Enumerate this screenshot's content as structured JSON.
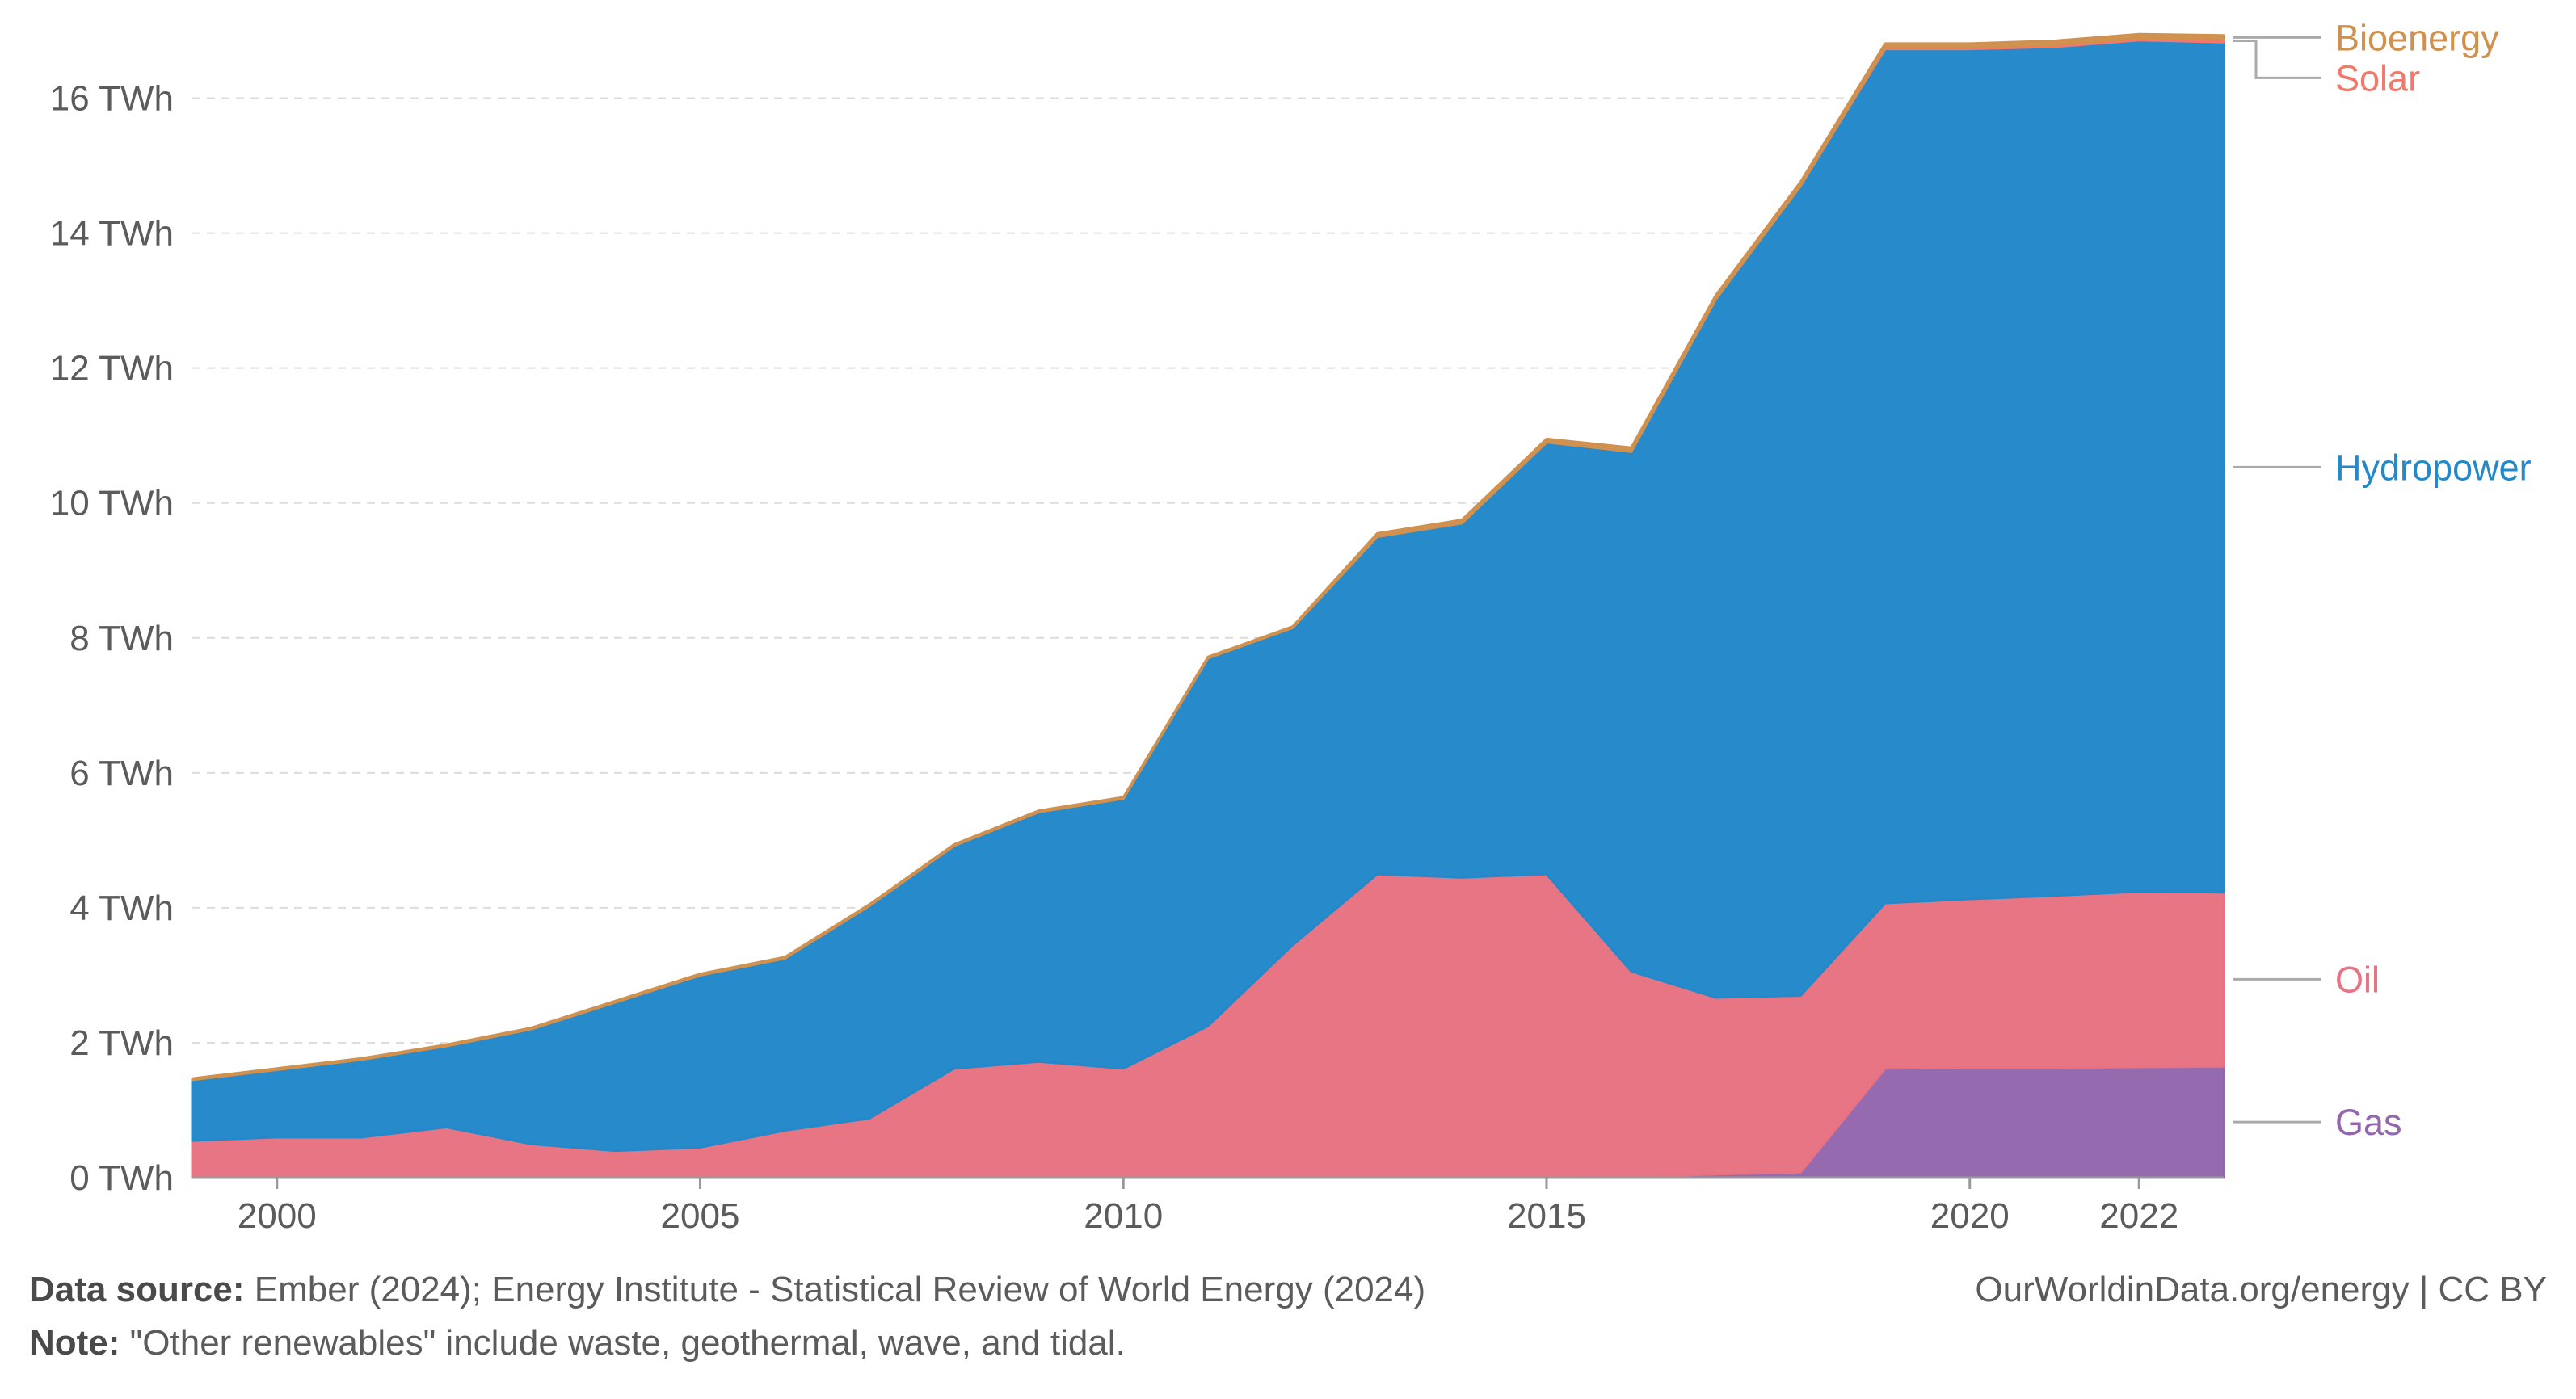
{
  "chart_data": {
    "type": "area",
    "stacked": true,
    "x": [
      1999,
      2000,
      2001,
      2002,
      2003,
      2004,
      2005,
      2006,
      2007,
      2008,
      2009,
      2010,
      2011,
      2012,
      2013,
      2014,
      2015,
      2016,
      2017,
      2018,
      2019,
      2020,
      2021,
      2022,
      2023
    ],
    "xlim": [
      1999.0,
      2023.0
    ],
    "ylim": [
      0,
      17
    ],
    "x_ticks": [
      2000,
      2005,
      2010,
      2015,
      2020,
      2022
    ],
    "y_ticks": [
      {
        "value": 0,
        "label": "0 TWh"
      },
      {
        "value": 2,
        "label": "2 TWh"
      },
      {
        "value": 4,
        "label": "4 TWh"
      },
      {
        "value": 6,
        "label": "6 TWh"
      },
      {
        "value": 8,
        "label": "8 TWh"
      },
      {
        "value": 10,
        "label": "10 TWh"
      },
      {
        "value": 12,
        "label": "12 TWh"
      },
      {
        "value": 14,
        "label": "14 TWh"
      },
      {
        "value": 16,
        "label": "16 TWh"
      }
    ],
    "grid": "horizontal dashed",
    "legend_position": "right (inline labels at series ends)",
    "series": [
      {
        "name": "Gas",
        "color": "#9467ad",
        "values": [
          0,
          0,
          0,
          0,
          0,
          0,
          0,
          0,
          0,
          0,
          0,
          0,
          0,
          0,
          0,
          0,
          0,
          0.01,
          0.05,
          0.08,
          1.62,
          1.63,
          1.63,
          1.64,
          1.65
        ]
      },
      {
        "name": "Oil",
        "color": "#e87282",
        "values": [
          0.55,
          0.6,
          0.6,
          0.75,
          0.5,
          0.4,
          0.45,
          0.7,
          0.88,
          1.62,
          1.72,
          1.62,
          2.25,
          3.45,
          4.5,
          4.45,
          4.5,
          3.05,
          2.62,
          2.62,
          2.45,
          2.5,
          2.55,
          2.6,
          2.58
        ]
      },
      {
        "name": "Hydropower",
        "color": "#2389ca",
        "values": [
          0.9,
          1.0,
          1.15,
          1.2,
          1.7,
          2.2,
          2.55,
          2.55,
          3.15,
          3.3,
          3.7,
          4.0,
          5.45,
          4.7,
          5.0,
          5.25,
          6.4,
          7.7,
          10.35,
          12.0,
          12.66,
          12.6,
          12.58,
          12.62,
          12.6
        ]
      },
      {
        "name": "Solar",
        "color": "#f2786b",
        "values": [
          0,
          0,
          0,
          0,
          0,
          0,
          0,
          0,
          0,
          0,
          0,
          0,
          0,
          0,
          0,
          0,
          0,
          0,
          0,
          0,
          0.02,
          0.02,
          0.03,
          0.03,
          0.04
        ]
      },
      {
        "name": "Bioenergy",
        "color": "#d0914f",
        "values": [
          0.02,
          0.02,
          0.02,
          0.02,
          0.02,
          0.02,
          0.02,
          0.02,
          0.02,
          0.02,
          0.02,
          0.02,
          0.02,
          0.02,
          0.05,
          0.05,
          0.05,
          0.06,
          0.06,
          0.06,
          0.06,
          0.06,
          0.06,
          0.06,
          0.06
        ]
      }
    ]
  },
  "footer": {
    "source_label": "Data source:",
    "source_text": " Ember (2024); Energy Institute - Statistical Review of World Energy (2024)",
    "credit": "OurWorldinData.org/energy | CC BY",
    "note_label": "Note:",
    "note_text": " \"Other renewables\" include waste, geothermal, wave, and tidal."
  }
}
